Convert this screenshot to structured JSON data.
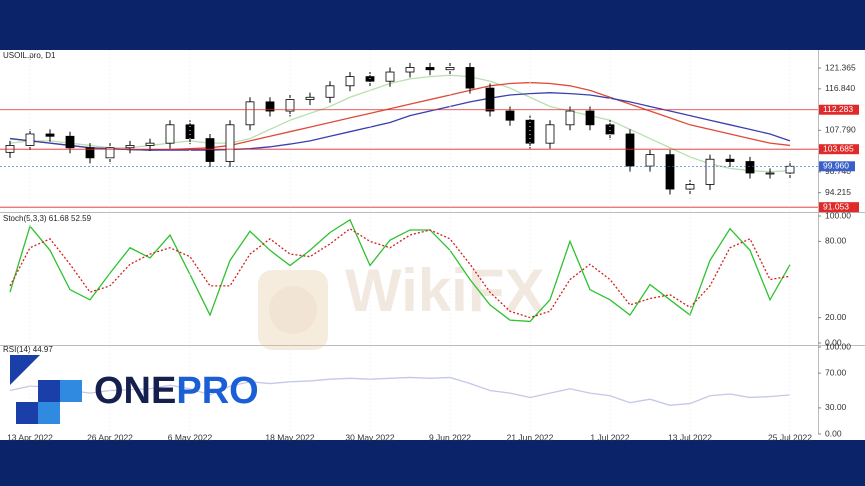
{
  "chart_data": [
    {
      "type": "candlestick",
      "title": "USOIL.pro, D1",
      "categories": [
        null,
        "13 Apr 2022",
        null,
        null,
        null,
        "26 Apr 2022",
        null,
        null,
        null,
        "6 May 2022",
        null,
        null,
        null,
        null,
        "18 May 2022",
        null,
        null,
        null,
        "30 May 2022",
        null,
        null,
        null,
        "9 Jun 2022",
        null,
        null,
        null,
        "21 Jun 2022",
        null,
        null,
        null,
        "1 Jul 2022",
        null,
        null,
        null,
        "13 Jul 2022",
        null,
        null,
        null,
        null,
        "25 Jul 2022"
      ],
      "open": [
        103,
        104.5,
        107,
        106.5,
        104,
        101.8,
        104,
        104.5,
        105,
        109,
        106,
        101,
        109,
        114,
        112,
        114.5,
        115,
        117.5,
        119.5,
        118.5,
        120.5,
        121.5,
        121,
        121.5,
        117,
        112,
        110,
        105,
        109,
        112,
        109,
        107,
        100,
        102.5,
        95,
        96,
        101.5,
        101,
        98.5,
        98.5
      ],
      "high": [
        105.5,
        108,
        108,
        107.5,
        105,
        105,
        105.5,
        106,
        110,
        110,
        107,
        110,
        115,
        115,
        115.5,
        116,
        118.5,
        120.5,
        120.5,
        121.5,
        122.5,
        122.5,
        122.5,
        122.5,
        118,
        113,
        111,
        110,
        113,
        113,
        110,
        108,
        103.5,
        103.5,
        97,
        102.5,
        102.5,
        102,
        99.5,
        101
      ],
      "low": [
        101.8,
        103.3,
        105.3,
        102.8,
        100.6,
        100.6,
        102.8,
        103.3,
        103.8,
        104.8,
        99.8,
        99.8,
        107.8,
        110.8,
        110.8,
        113.3,
        113.8,
        116.3,
        117.3,
        117.3,
        119.3,
        119.8,
        119.8,
        115.8,
        110.8,
        108.8,
        103.8,
        103.8,
        107.8,
        107.8,
        105.8,
        98.8,
        98.8,
        93.8,
        93.8,
        94.8,
        99.8,
        97.3,
        97.3,
        97.3
      ],
      "close": [
        104.5,
        107,
        106.5,
        104,
        101.8,
        104,
        104.5,
        105,
        109,
        106,
        101,
        109,
        114,
        112,
        114.5,
        115,
        117.5,
        119.5,
        118.5,
        120.5,
        121.5,
        121,
        121.5,
        117,
        112,
        110,
        105,
        109,
        112,
        109,
        107,
        100,
        102.5,
        95,
        96,
        101.5,
        101,
        98.5,
        98.5,
        99.96
      ],
      "up_color": "#ffffff",
      "down_color": "#000000",
      "series": [
        {
          "color": "#b8e0b0",
          "values": [
            105,
            105.5,
            105.5,
            105,
            104.5,
            104,
            104,
            104.5,
            105,
            105.5,
            105,
            105,
            106,
            108,
            110,
            111.5,
            113,
            115,
            116.5,
            118,
            119,
            119.5,
            119.8,
            119.5,
            118.5,
            117,
            115,
            113,
            112,
            111,
            110,
            108,
            106,
            104,
            102,
            100.5,
            99.5,
            99,
            98.8,
            99
          ]
        },
        {
          "color": "#e04a3a",
          "values": [
            106,
            105.5,
            105,
            104.5,
            104,
            103.8,
            103.6,
            103.5,
            103.6,
            103.8,
            104,
            104.5,
            105.5,
            106.5,
            107.5,
            108.5,
            109.5,
            110.5,
            111.5,
            112.5,
            113.5,
            114.5,
            115.5,
            116.5,
            117.5,
            118,
            118.2,
            118,
            117.5,
            116.5,
            115,
            113.5,
            112,
            110.5,
            109,
            108,
            107,
            106,
            105,
            104.5
          ]
        },
        {
          "color": "#3a3fb0",
          "values": [
            106,
            105.5,
            105,
            104.5,
            104,
            103.8,
            103.6,
            103.5,
            103.5,
            103.5,
            103.5,
            103.6,
            103.8,
            104.2,
            104.8,
            105.5,
            106.5,
            107.5,
            108.5,
            109.5,
            111,
            112,
            113,
            114,
            114.8,
            115.5,
            115.8,
            116,
            115.8,
            115.5,
            114.8,
            114,
            113,
            112,
            111,
            110,
            109,
            108,
            107,
            105.5
          ]
        }
      ],
      "hlines": {
        "color": "#e02a2a",
        "values": [
          112.283,
          103.685,
          91.053
        ],
        "value_labels": [
          "112.283",
          "103.685",
          "91.053"
        ]
      },
      "last_price": {
        "color": "#3a5fc8",
        "value": 99.96,
        "label": "99.960"
      },
      "ylim": [
        90,
        125.3
      ],
      "yticks": [
        121.365,
        {
          "value": 116.84,
          "label": "116.840"
        },
        {
          "value": 107.79,
          "label": "107.790"
        },
        {
          "value": 98.74,
          "label": "98.740"
        },
        94.215
      ]
    },
    {
      "type": "line",
      "title": "Stoch(5,3,3) 61.68 52.59",
      "series": [
        {
          "color": "#2fc12f",
          "style": "solid",
          "values": [
            40,
            92,
            73,
            42,
            34,
            55,
            75,
            67,
            85,
            54,
            22,
            65,
            88,
            73,
            61,
            73,
            87,
            97,
            61,
            81,
            89,
            89,
            73,
            50,
            30,
            18,
            17,
            34,
            80,
            42,
            34,
            22,
            46,
            34,
            22,
            65,
            90,
            73,
            34,
            61.68
          ]
        },
        {
          "color": "#d42020",
          "style": "dotted",
          "values": [
            45,
            75,
            82,
            62,
            40,
            45,
            62,
            70,
            75,
            68,
            45,
            45,
            70,
            82,
            70,
            68,
            78,
            90,
            80,
            75,
            85,
            89,
            82,
            62,
            40,
            25,
            20,
            25,
            50,
            62,
            50,
            30,
            35,
            38,
            28,
            45,
            75,
            82,
            50,
            52.59
          ]
        }
      ],
      "ylim": [
        0,
        100
      ],
      "yticks": [
        {
          "value": 100,
          "label": "100.00"
        },
        {
          "value": 80,
          "label": "80.00"
        },
        {
          "value": 20,
          "label": "20.00"
        },
        {
          "value": 0,
          "label": "0.00"
        }
      ]
    },
    {
      "type": "line",
      "title": "RSI(14) 44.97",
      "series": [
        {
          "color": "#c3c8e6",
          "style": "solid",
          "values": [
            50,
            55,
            54,
            50,
            47,
            50,
            51,
            52,
            56,
            52,
            45,
            55,
            60,
            58,
            60,
            61,
            63,
            64,
            63,
            64,
            65,
            64,
            65,
            58,
            50,
            47,
            42,
            47,
            52,
            47,
            44,
            36,
            40,
            33,
            35,
            44,
            46,
            42,
            43,
            44.97
          ]
        }
      ],
      "ylim": [
        0,
        100
      ],
      "yticks": [
        {
          "value": 100,
          "label": "100.00"
        },
        {
          "value": 70,
          "label": "70.00"
        },
        {
          "value": 30,
          "label": "30.00"
        },
        {
          "value": 0,
          "label": "0.00"
        }
      ]
    }
  ],
  "watermark": "WikiFX",
  "logo": [
    "ONE",
    "PRO"
  ]
}
